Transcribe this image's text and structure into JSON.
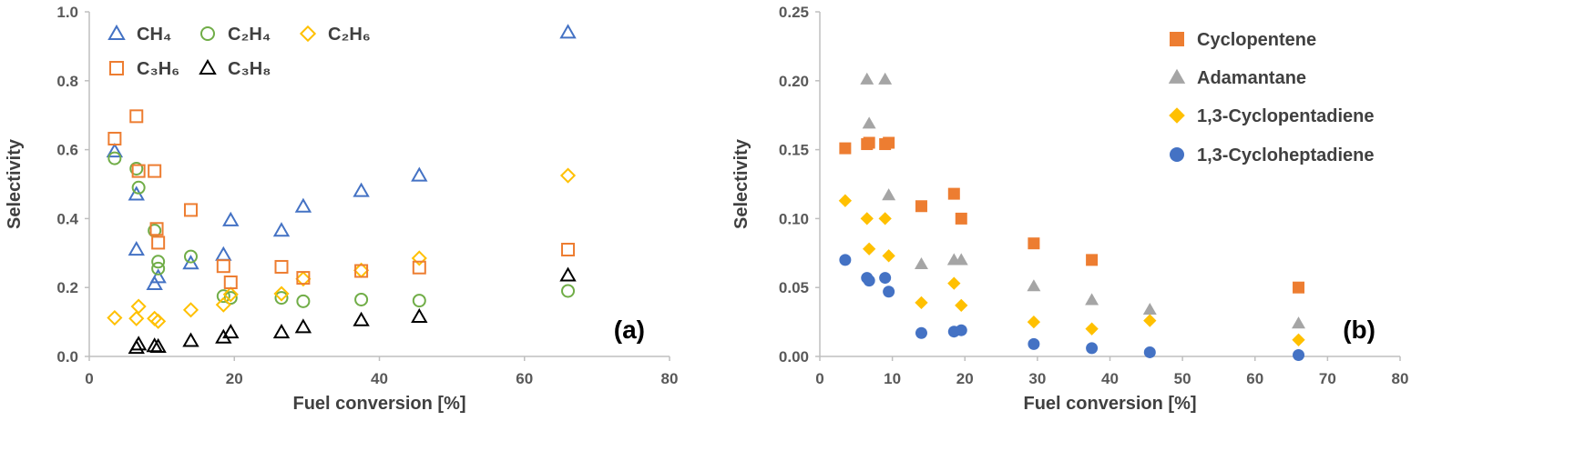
{
  "chart_data": [
    {
      "type": "scatter",
      "panel_label": "(a)",
      "xlabel": "Fuel conversion [%]",
      "ylabel": "Selectivity",
      "xlim": [
        0,
        80
      ],
      "ylim": [
        0,
        1.0
      ],
      "xticks": [
        "0",
        "20",
        "40",
        "60",
        "80"
      ],
      "yticks": [
        "0.0",
        "0.2",
        "0.4",
        "0.6",
        "0.8",
        "1.0"
      ],
      "legend_placement": "top-left",
      "series": [
        {
          "name": "CH₄",
          "marker": "triangle-open",
          "color": "#4472C4",
          "x": [
            3.5,
            6.5,
            6.5,
            9.0,
            9.5,
            14.0,
            18.5,
            19.5,
            26.5,
            29.5,
            37.5,
            45.5,
            66.0
          ],
          "y": [
            0.595,
            0.31,
            0.47,
            0.21,
            0.23,
            0.27,
            0.295,
            0.395,
            0.365,
            0.435,
            0.48,
            0.525,
            0.94
          ]
        },
        {
          "name": "C₂H₄",
          "marker": "circle-open",
          "color": "#70AD47",
          "x": [
            3.5,
            6.5,
            6.8,
            9.0,
            9.5,
            9.5,
            14.0,
            18.5,
            19.5,
            26.5,
            29.5,
            37.5,
            45.5,
            66.0
          ],
          "y": [
            0.575,
            0.545,
            0.49,
            0.365,
            0.275,
            0.255,
            0.29,
            0.175,
            0.17,
            0.17,
            0.16,
            0.165,
            0.162,
            0.19
          ]
        },
        {
          "name": "C₂H₆",
          "marker": "diamond-open",
          "color": "#FFC000",
          "x": [
            3.5,
            6.5,
            6.8,
            9.0,
            9.5,
            14.0,
            18.5,
            19.5,
            26.5,
            29.5,
            37.5,
            45.5,
            66.0
          ],
          "y": [
            0.112,
            0.11,
            0.145,
            0.11,
            0.102,
            0.135,
            0.15,
            0.18,
            0.182,
            0.225,
            0.25,
            0.285,
            0.525
          ]
        },
        {
          "name": "C₃H₆",
          "marker": "square-open",
          "color": "#ED7D31",
          "x": [
            3.5,
            6.5,
            6.8,
            9.0,
            9.3,
            9.5,
            14.0,
            18.5,
            19.5,
            26.5,
            29.5,
            37.5,
            45.5,
            66.0
          ],
          "y": [
            0.632,
            0.697,
            0.538,
            0.538,
            0.37,
            0.33,
            0.425,
            0.262,
            0.215,
            0.26,
            0.228,
            0.248,
            0.258,
            0.31
          ]
        },
        {
          "name": "C₃H₈",
          "marker": "triangle-open",
          "color": "#000000",
          "x": [
            6.5,
            6.8,
            9.0,
            9.5,
            14.0,
            18.5,
            19.5,
            26.5,
            29.5,
            37.5,
            45.5,
            66.0
          ],
          "y": [
            0.025,
            0.035,
            0.03,
            0.028,
            0.045,
            0.055,
            0.07,
            0.07,
            0.085,
            0.105,
            0.115,
            0.235
          ]
        }
      ]
    },
    {
      "type": "scatter",
      "panel_label": "(b)",
      "xlabel": "Fuel conversion [%]",
      "ylabel": "Selectivity",
      "xlim": [
        0,
        80
      ],
      "ylim": [
        0,
        0.25
      ],
      "xticks": [
        "0",
        "10",
        "20",
        "30",
        "40",
        "50",
        "60",
        "70",
        "80"
      ],
      "yticks": [
        "0.00",
        "0.05",
        "0.10",
        "0.15",
        "0.20",
        "0.25"
      ],
      "legend_placement": "top-right",
      "series": [
        {
          "name": "Cyclopentene",
          "marker": "square-filled",
          "color": "#ED7D31",
          "x": [
            3.5,
            6.5,
            6.8,
            9.0,
            9.5,
            14.0,
            18.5,
            19.5,
            29.5,
            37.5,
            66.0
          ],
          "y": [
            0.151,
            0.154,
            0.155,
            0.154,
            0.155,
            0.109,
            0.118,
            0.1,
            0.082,
            0.07,
            0.05
          ]
        },
        {
          "name": "Adamantane",
          "marker": "triangle-filled",
          "color": "#A5A5A5",
          "x": [
            6.5,
            6.8,
            9.0,
            9.5,
            14.0,
            18.5,
            19.5,
            29.5,
            37.5,
            45.5,
            66.0
          ],
          "y": [
            0.201,
            0.169,
            0.201,
            0.117,
            0.067,
            0.07,
            0.07,
            0.051,
            0.041,
            0.034,
            0.024
          ]
        },
        {
          "name": "1,3-Cyclopentadiene",
          "marker": "diamond-filled",
          "color": "#FFC000",
          "x": [
            3.5,
            6.5,
            6.8,
            9.0,
            9.5,
            14.0,
            18.5,
            19.5,
            29.5,
            37.5,
            45.5,
            66.0
          ],
          "y": [
            0.113,
            0.1,
            0.078,
            0.1,
            0.073,
            0.039,
            0.053,
            0.037,
            0.025,
            0.02,
            0.026,
            0.012
          ]
        },
        {
          "name": "1,3-Cycloheptadiene",
          "marker": "circle-filled",
          "color": "#4472C4",
          "x": [
            3.5,
            6.5,
            6.8,
            9.0,
            9.5,
            14.0,
            18.5,
            19.5,
            29.5,
            37.5,
            45.5,
            66.0
          ],
          "y": [
            0.07,
            0.057,
            0.055,
            0.057,
            0.047,
            0.017,
            0.018,
            0.019,
            0.009,
            0.006,
            0.003,
            0.001
          ]
        }
      ]
    }
  ]
}
